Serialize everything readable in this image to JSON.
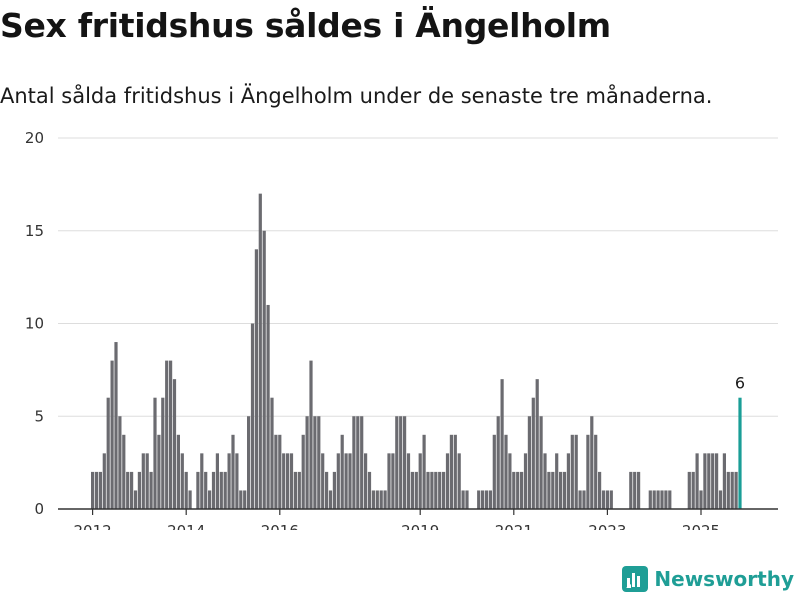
{
  "title": "Sex fritidshus såldes i Ängelholm",
  "subtitle": "Antal sålda fritidshus i Ängelholm under de senaste tre månaderna.",
  "brand": {
    "name": "Newsworthy",
    "color": "#1f9e96",
    "icon": "newsworthy-logo-icon"
  },
  "colors": {
    "bar": "#6b6b70",
    "highlight": "#1a9e97",
    "grid": "#dddddd",
    "axis": "#333333"
  },
  "chart_data": {
    "type": "bar",
    "title": "Sex fritidshus såldes i Ängelholm",
    "subtitle": "Antal sålda fritidshus i Ängelholm under de senaste tre månaderna.",
    "xlabel": "",
    "ylabel": "",
    "ylim": [
      0,
      20
    ],
    "y_ticks": [
      0,
      5,
      10,
      15,
      20
    ],
    "x_tick_labels": [
      "2012",
      "2014",
      "2016",
      "2019",
      "2021",
      "2023",
      "2025"
    ],
    "x_tick_values": [
      2012,
      2014,
      2016,
      2019,
      2021,
      2023,
      2025
    ],
    "grid": "horizontal",
    "start": "2012-01",
    "interval": "month",
    "values": [
      2,
      2,
      2,
      3,
      6,
      8,
      9,
      5,
      4,
      2,
      2,
      1,
      2,
      3,
      3,
      2,
      6,
      4,
      6,
      8,
      8,
      7,
      4,
      3,
      2,
      1,
      0,
      2,
      3,
      2,
      1,
      2,
      3,
      2,
      2,
      3,
      4,
      3,
      1,
      1,
      5,
      10,
      14,
      17,
      15,
      11,
      6,
      4,
      4,
      3,
      3,
      3,
      2,
      2,
      4,
      5,
      8,
      5,
      5,
      3,
      2,
      1,
      2,
      3,
      4,
      3,
      3,
      5,
      5,
      5,
      3,
      2,
      1,
      1,
      1,
      1,
      3,
      3,
      5,
      5,
      5,
      3,
      2,
      2,
      3,
      4,
      2,
      2,
      2,
      2,
      2,
      3,
      4,
      4,
      3,
      1,
      1,
      0,
      0,
      1,
      1,
      1,
      1,
      4,
      5,
      7,
      4,
      3,
      2,
      2,
      2,
      3,
      5,
      6,
      7,
      5,
      3,
      2,
      2,
      3,
      2,
      2,
      3,
      4,
      4,
      1,
      1,
      4,
      5,
      4,
      2,
      1,
      1,
      1,
      0,
      0,
      0,
      0,
      2,
      2,
      2,
      0,
      0,
      1,
      1,
      1,
      1,
      1,
      1,
      0,
      0,
      0,
      0,
      2,
      2,
      3,
      1,
      3,
      3,
      3,
      3,
      1,
      3,
      2,
      2,
      2,
      6
    ],
    "annotations": [
      {
        "index": 166,
        "label": "6"
      }
    ]
  }
}
